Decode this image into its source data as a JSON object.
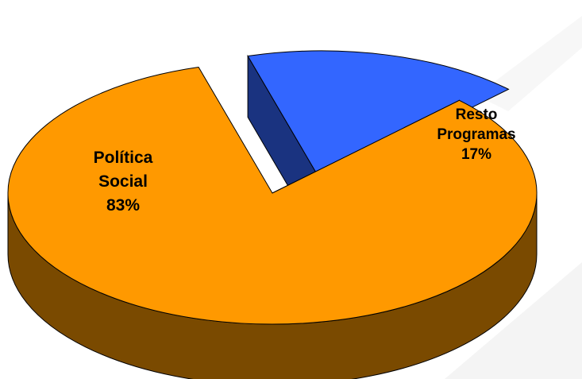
{
  "chart_data": {
    "type": "pie",
    "style": "3d-exploded",
    "title": "",
    "legend": "none",
    "slices": [
      {
        "label_lines": [
          "Política",
          "Social",
          "83%"
        ],
        "value": 83,
        "color": "#ff9900",
        "side_color": "#7a4a00"
      },
      {
        "label_lines": [
          "Resto",
          "Programas",
          "17%"
        ],
        "value": 17,
        "color": "#3366ff",
        "side_color": "#1a3380"
      }
    ]
  }
}
